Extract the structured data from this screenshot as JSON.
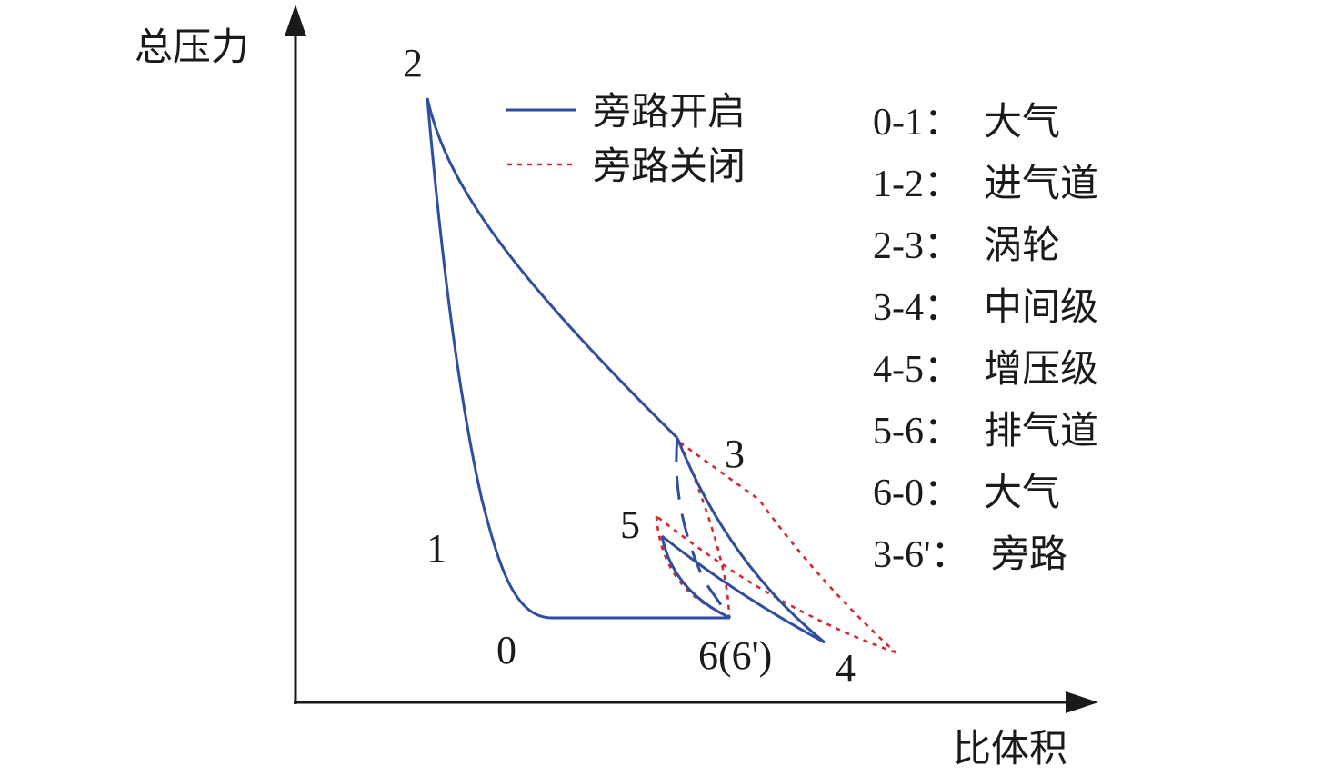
{
  "axes": {
    "y_label": "总压力",
    "x_label": "比体积"
  },
  "points": {
    "p0": "0",
    "p1": "1",
    "p2": "2",
    "p3": "3",
    "p4": "4",
    "p5": "5",
    "p6": "6(6')"
  },
  "legend": {
    "open": "旁路开启",
    "closed": "旁路关闭"
  },
  "stages": [
    {
      "range": "0-1：",
      "name": "大气"
    },
    {
      "range": "1-2：",
      "name": "进气道"
    },
    {
      "range": "2-3：",
      "name": "涡轮"
    },
    {
      "range": "3-4：",
      "name": "中间级"
    },
    {
      "range": "4-5：",
      "name": "增压级"
    },
    {
      "range": "5-6：",
      "name": "排气道"
    },
    {
      "range": "6-0：",
      "name": "大气"
    },
    {
      "range": "3-6'：",
      "name": "旁路"
    }
  ],
  "colors": {
    "open_line": "#2f4ea0",
    "closed_line": "#d9262e",
    "axis": "#1a1a1a"
  }
}
